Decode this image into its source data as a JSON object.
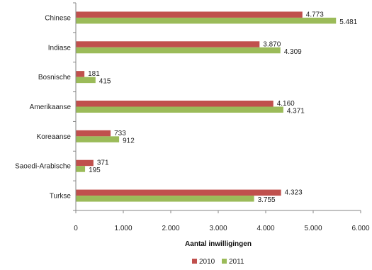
{
  "chart_data": {
    "type": "bar",
    "orientation": "horizontal",
    "categories": [
      "Chinese",
      "Indiase",
      "Bosnische",
      "Amerikaanse",
      "Koreaanse",
      "Saoedi-Arabische",
      "Turkse"
    ],
    "series": [
      {
        "name": "2010",
        "color": "#C0504D",
        "values": [
          4773,
          3870,
          181,
          4160,
          733,
          371,
          4323
        ],
        "labels": [
          "4.773",
          "3.870",
          "181",
          "4.160",
          "733",
          "371",
          "4.323"
        ]
      },
      {
        "name": "2011",
        "color": "#9BBB59",
        "values": [
          5481,
          4309,
          415,
          4371,
          912,
          195,
          3755
        ],
        "labels": [
          "5.481",
          "4.309",
          "415",
          "4.371",
          "912",
          "195",
          "3.755"
        ]
      }
    ],
    "xlabel": "Aantal inwilligingen",
    "xlim": [
      0,
      6000
    ],
    "xticks": [
      0,
      1000,
      2000,
      3000,
      4000,
      5000,
      6000
    ],
    "xtick_labels": [
      "0",
      "1.000",
      "2.000",
      "3.000",
      "4.000",
      "5.000",
      "6.000"
    ],
    "grid": false,
    "legend": "bottom"
  }
}
